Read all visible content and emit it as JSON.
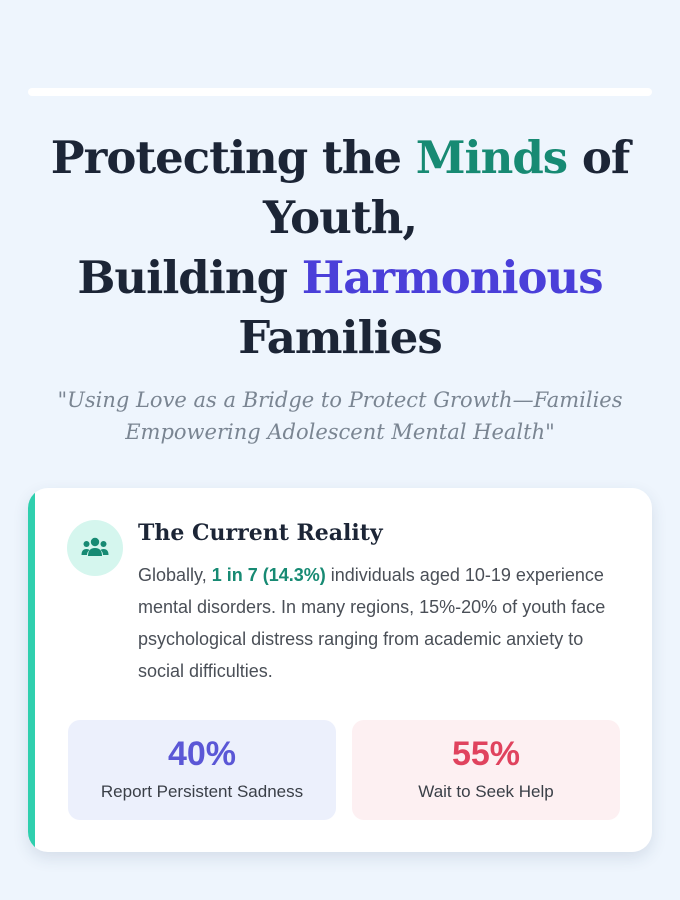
{
  "header": {
    "title": {
      "line1": {
        "before": "Protecting the ",
        "highlight": "Minds",
        "after": " of"
      },
      "line2": "Youth,",
      "line3": {
        "before": "Building ",
        "highlight": "Harmonious"
      },
      "line4": "Families"
    },
    "subtitle": "\"Using Love as a Bridge to Protect Growth—Families Empowering Adolescent Mental Health\""
  },
  "reality_card": {
    "heading": "The Current Reality",
    "text": {
      "before": "Globally, ",
      "highlight": "1 in 7 (14.3%)",
      "after": " individuals aged 10-19 experience mental disorders. In many regions, 15%-20% of youth face psychological distress ranging from academic anxiety to social difficulties."
    },
    "stats": [
      {
        "value": "40%",
        "label": "Report Persistent Sadness"
      },
      {
        "value": "55%",
        "label": "Wait to Seek Help"
      }
    ]
  }
}
